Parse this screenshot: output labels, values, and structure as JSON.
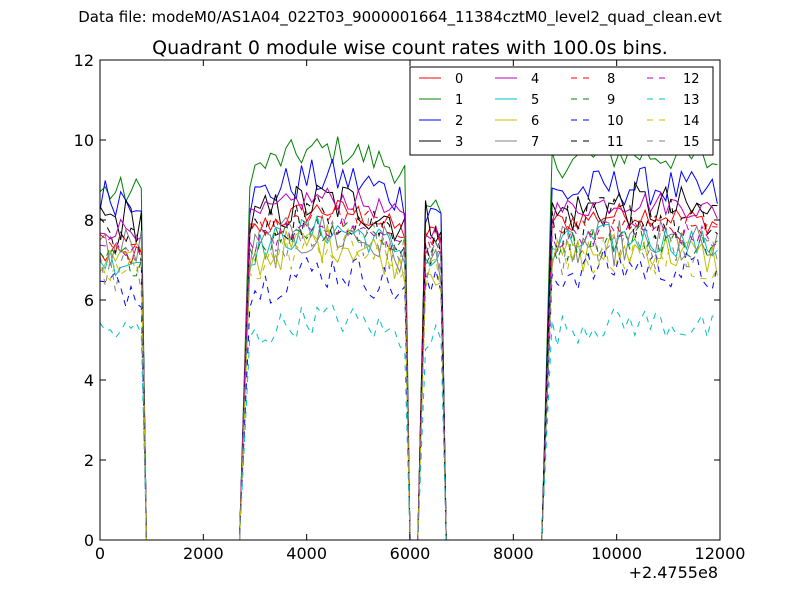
{
  "figure": {
    "suptitle": "Data file: modeM0/AS1A04_022T03_9000001664_11384cztM0_level2_quad_clean.evt"
  },
  "chart_data": {
    "type": "line",
    "title": "Quadrant 0 module wise count rates with 100.0s bins.",
    "xlabel": "",
    "ylabel": "",
    "x_offset_label": "+2.4755e8",
    "xlim": [
      0,
      12000
    ],
    "ylim": [
      0,
      12
    ],
    "x_ticks": [
      0,
      2000,
      4000,
      6000,
      8000,
      10000,
      12000
    ],
    "y_ticks": [
      0,
      2,
      4,
      6,
      8,
      10,
      12
    ],
    "x_tick_labels": [
      "0",
      "2000",
      "4000",
      "6000",
      "8000",
      "10000",
      "12000"
    ],
    "y_tick_labels": [
      "0",
      "2",
      "4",
      "6",
      "8",
      "10",
      "12"
    ],
    "grid": false,
    "legend_position": "top-right",
    "legend_columns": 4,
    "bin_seconds": 100,
    "segments": [
      {
        "on": [
          0,
          800
        ],
        "off_end": 900
      },
      {
        "off_start": 2700,
        "on": [
          2900,
          5900
        ],
        "off_end": 6000
      },
      {
        "off_start": 6150,
        "on": [
          6300,
          6600
        ],
        "off_end": 6700
      },
      {
        "off_start": 8550,
        "on": [
          8750,
          11950
        ]
      }
    ],
    "series": [
      {
        "name": "0",
        "color": "#ff0000",
        "dash": false,
        "levels": [
          7.1,
          7.7,
          7.6,
          7.9
        ]
      },
      {
        "name": "1",
        "color": "#008000",
        "dash": false,
        "levels": [
          8.7,
          9.2,
          8.1,
          9.4
        ]
      },
      {
        "name": "2",
        "color": "#0000ff",
        "dash": false,
        "levels": [
          8.6,
          8.5,
          8.3,
          8.6
        ]
      },
      {
        "name": "3",
        "color": "#000000",
        "dash": false,
        "levels": [
          8.0,
          7.9,
          8.0,
          8.1
        ]
      },
      {
        "name": "4",
        "color": "#bf00bf",
        "dash": false,
        "levels": [
          7.8,
          8.0,
          7.7,
          8.2
        ]
      },
      {
        "name": "5",
        "color": "#00bfbf",
        "dash": false,
        "levels": [
          7.0,
          7.2,
          7.0,
          7.3
        ]
      },
      {
        "name": "6",
        "color": "#bfbf00",
        "dash": false,
        "levels": [
          7.0,
          6.9,
          6.8,
          7.0
        ]
      },
      {
        "name": "7",
        "color": "#808080",
        "dash": false,
        "levels": [
          7.3,
          7.1,
          7.0,
          7.2
        ]
      },
      {
        "name": "8",
        "color": "#ff0000",
        "dash": true,
        "levels": [
          7.4,
          7.6,
          7.5,
          7.6
        ]
      },
      {
        "name": "9",
        "color": "#008000",
        "dash": true,
        "levels": [
          7.0,
          7.3,
          7.1,
          7.3
        ]
      },
      {
        "name": "10",
        "color": "#0000ff",
        "dash": true,
        "levels": [
          6.3,
          6.2,
          6.3,
          6.6
        ]
      },
      {
        "name": "11",
        "color": "#000000",
        "dash": true,
        "levels": [
          7.5,
          7.6,
          7.4,
          7.8
        ]
      },
      {
        "name": "12",
        "color": "#bf00bf",
        "dash": true,
        "levels": [
          7.3,
          7.3,
          7.2,
          7.5
        ]
      },
      {
        "name": "13",
        "color": "#00bfbf",
        "dash": true,
        "levels": [
          5.2,
          5.0,
          5.1,
          5.2
        ]
      },
      {
        "name": "14",
        "color": "#bfbf00",
        "dash": true,
        "levels": [
          6.7,
          6.8,
          6.6,
          6.9
        ]
      },
      {
        "name": "15",
        "color": "#808080",
        "dash": true,
        "levels": [
          6.8,
          7.2,
          6.9,
          7.1
        ]
      }
    ]
  }
}
